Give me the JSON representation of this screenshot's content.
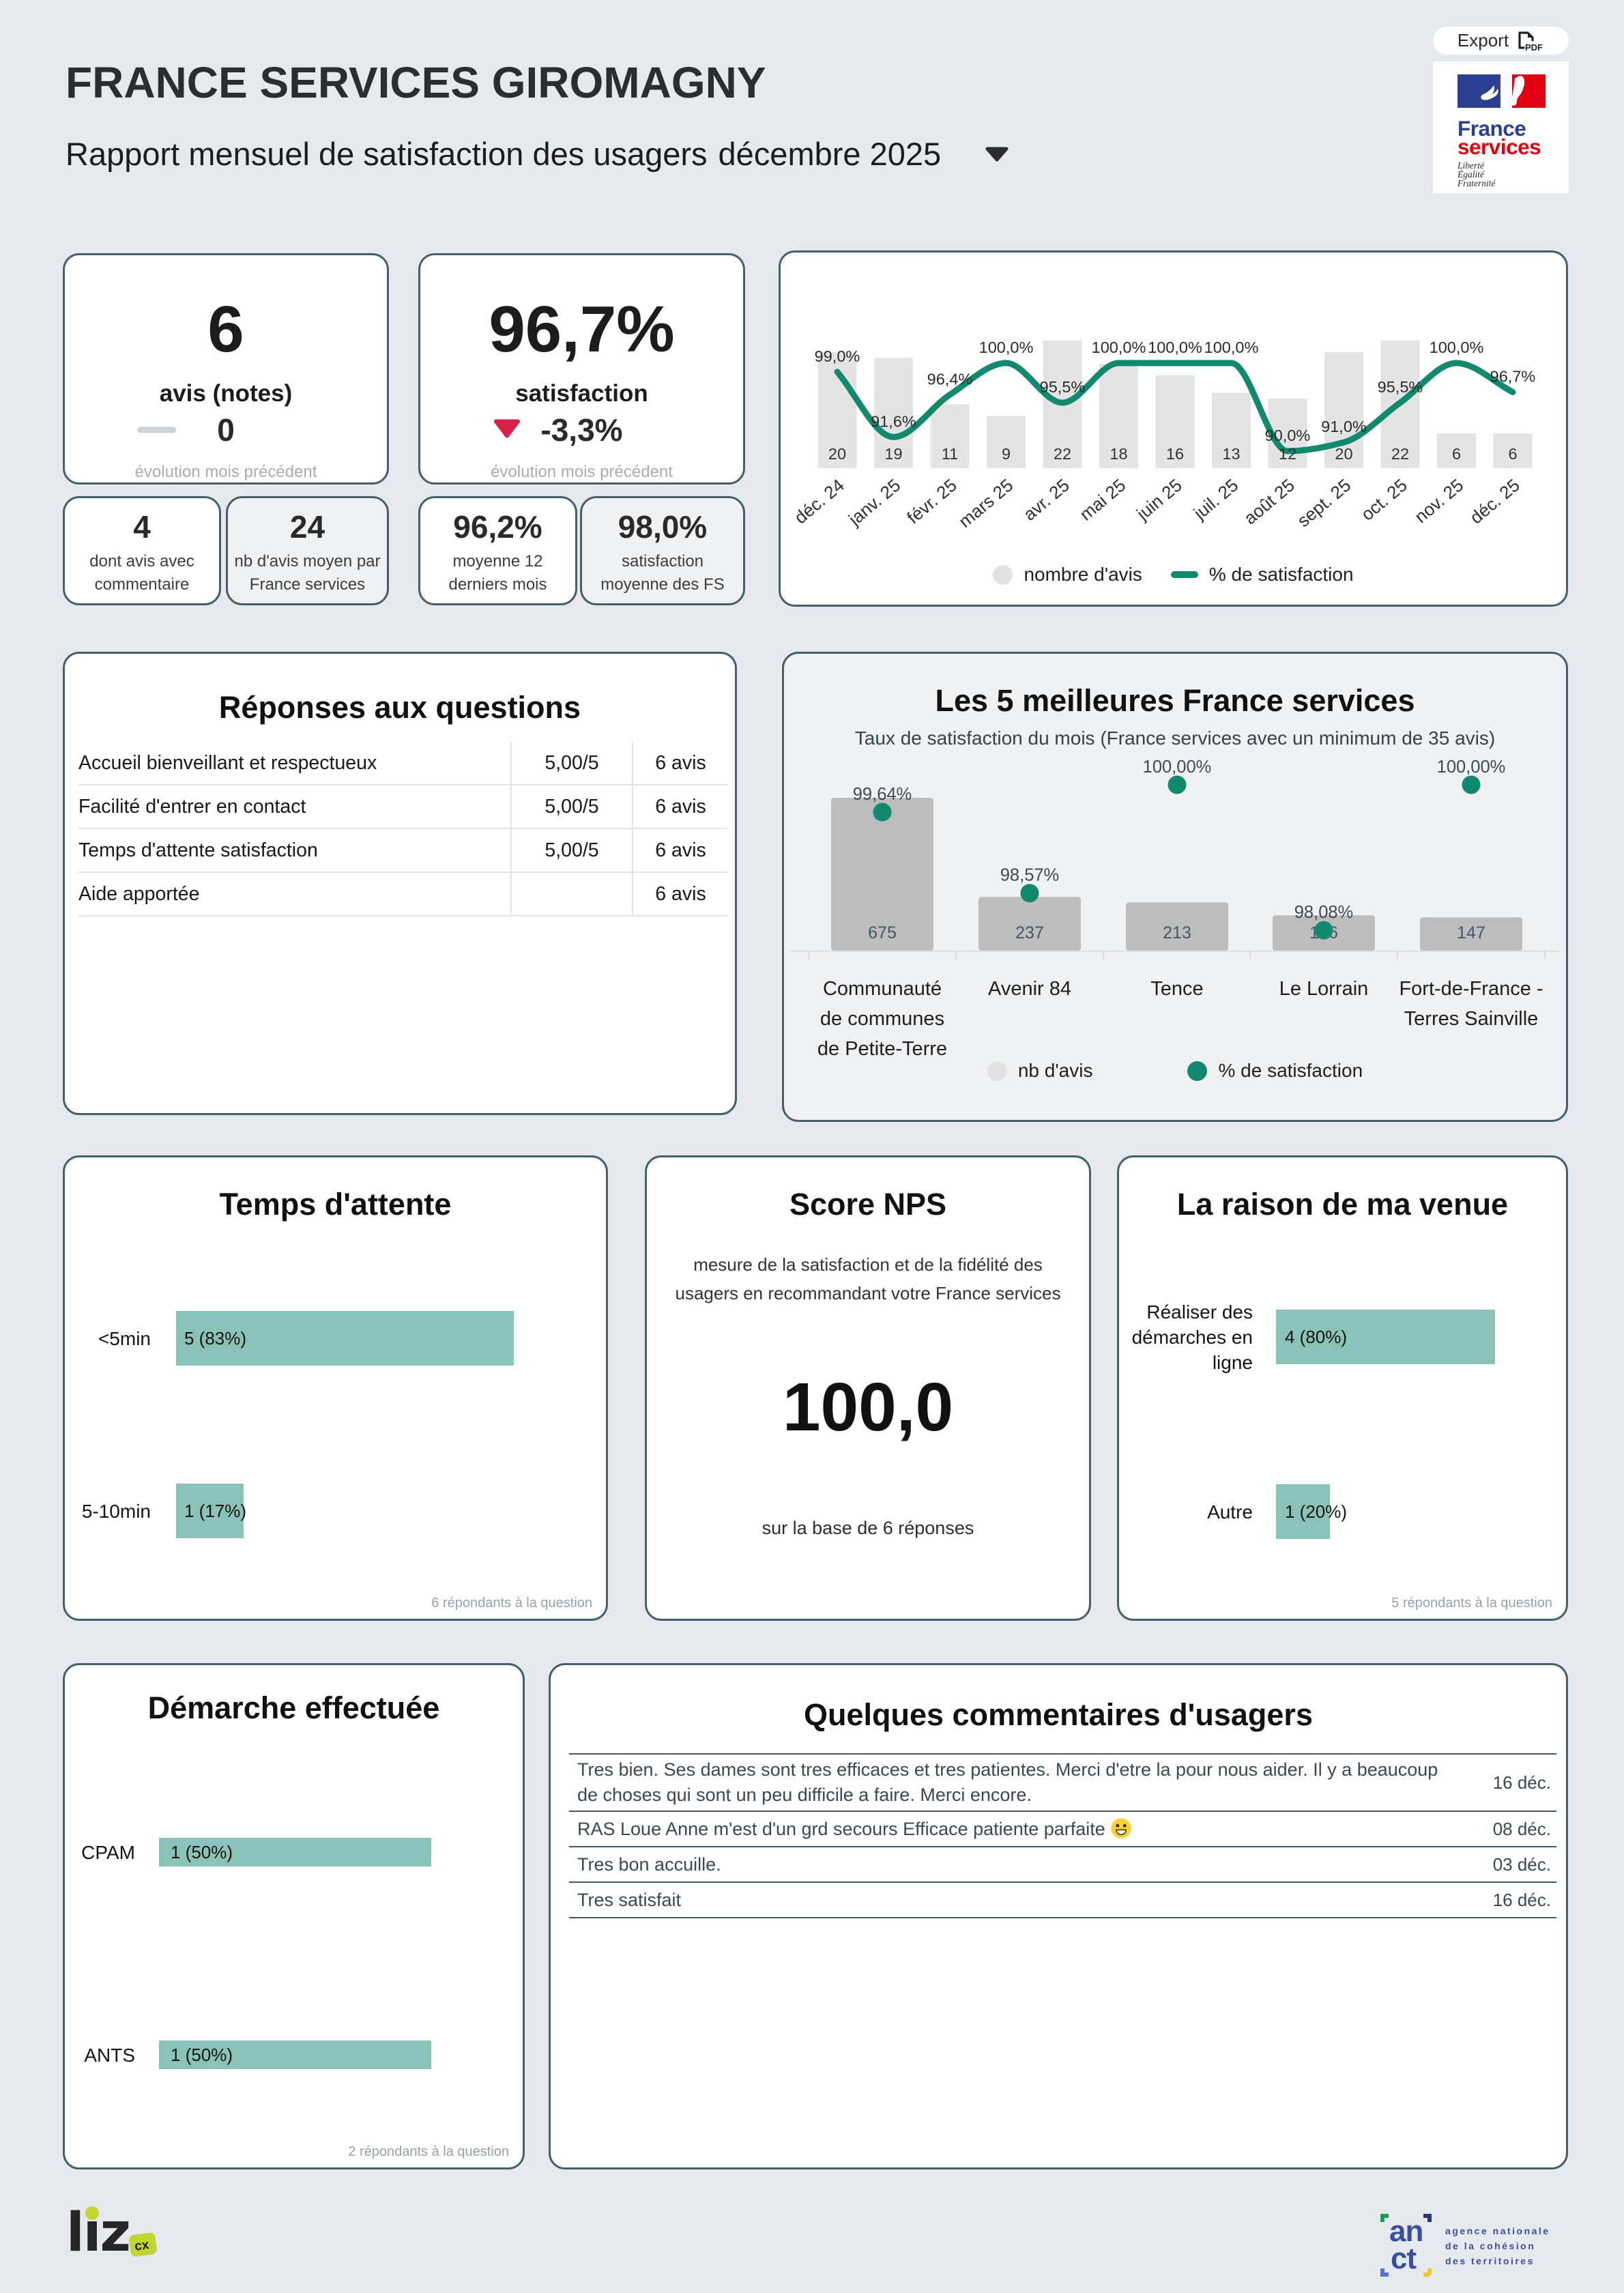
{
  "header": {
    "title": "FRANCE SERVICES GIROMAGNY",
    "subtitle": "Rapport mensuel de satisfaction des usagers",
    "period": "décembre 2025",
    "export_label": "Export",
    "logo": {
      "word1": "France",
      "word2": "services",
      "motto": [
        "Liberté",
        "Égalité",
        "Fraternité"
      ]
    }
  },
  "kpi_avis": {
    "value": "6",
    "label": "avis (notes)",
    "delta": "0",
    "delta_caption": "évolution mois précédent",
    "sub": [
      {
        "value": "4",
        "label_line1": "dont avis avec",
        "label_line2": "commentaire"
      },
      {
        "value": "24",
        "label_line1": "nb d'avis moyen par",
        "label_line2": "France services"
      }
    ]
  },
  "kpi_satisfaction": {
    "value": "96,7%",
    "label": "satisfaction",
    "delta": "-3,3%",
    "delta_caption": "évolution mois précédent",
    "sub": [
      {
        "value": "96,2%",
        "label_line1": "moyenne 12",
        "label_line2": "derniers mois"
      },
      {
        "value": "98,0%",
        "label_line1": "satisfaction",
        "label_line2": "moyenne des FS"
      }
    ]
  },
  "questions": {
    "title": "Réponses aux questions",
    "rows": [
      {
        "label": "Accueil bienveillant et respectueux",
        "score": "5,00/5",
        "avis": "6 avis"
      },
      {
        "label": "Facilité d'entrer en contact",
        "score": "5,00/5",
        "avis": "6 avis"
      },
      {
        "label": "Temps d'attente satisfaction",
        "score": "5,00/5",
        "avis": "6 avis"
      },
      {
        "label": "Aide apportée",
        "score": "",
        "avis": "6 avis"
      }
    ]
  },
  "nps": {
    "title": "Score NPS",
    "description": "mesure de la satisfaction et de la fidélité des usagers en recommandant votre France services",
    "value": "100,0",
    "base": "sur la base de 6 réponses"
  },
  "comments": {
    "title": "Quelques commentaires d'usagers",
    "rows": [
      {
        "text": "Tres bien. Ses dames sont tres efficaces et tres patientes. Merci d'etre la pour nous aider. Il y a beaucoup de choses qui sont un peu difficile a faire. Merci encore.",
        "date": "16 déc."
      },
      {
        "text": "RAS Loue Anne m'est d'un grd secours Efficace patiente parfaite 😀",
        "date": "08 déc."
      },
      {
        "text": "Tres bon accuille.",
        "date": "03 déc."
      },
      {
        "text": "Tres satisfait",
        "date": "16 déc."
      }
    ]
  },
  "footer": {
    "liz_word": "liz",
    "liz_badge": "cx",
    "anct_word1": "an",
    "anct_word2": "ct",
    "anct_lines": [
      "agence nationale",
      "de la cohésion",
      "des territoires"
    ]
  },
  "chart_data": [
    {
      "id": "trend",
      "type": "bar+line",
      "title": "",
      "categories": [
        "déc. 24",
        "janv. 25",
        "févr. 25",
        "mars 25",
        "avr. 25",
        "mai 25",
        "juin 25",
        "juil. 25",
        "août 25",
        "sept. 25",
        "oct. 25",
        "nov. 25",
        "déc. 25"
      ],
      "series": [
        {
          "name": "nombre d'avis",
          "type": "bar",
          "values": [
            20,
            19,
            11,
            9,
            22,
            18,
            16,
            13,
            12,
            20,
            22,
            6,
            6
          ]
        },
        {
          "name": "% de satisfaction",
          "type": "line",
          "values": [
            99.0,
            91.6,
            96.4,
            100.0,
            95.5,
            100.0,
            100.0,
            100.0,
            90.0,
            91.0,
            95.5,
            100.0,
            96.7
          ],
          "labels": [
            "99,0%",
            "91,6%",
            "96,4%",
            "100,0%",
            "95,5%",
            "100,0%",
            "100,0%",
            "100,0%",
            "90,0%",
            "91,0%",
            "95,5%",
            "100,0%",
            "96,7%"
          ]
        }
      ],
      "legend": [
        "nombre d'avis",
        "% de satisfaction"
      ]
    },
    {
      "id": "top5",
      "type": "bar+dot",
      "title": "Les 5 meilleures France services",
      "subtitle": "Taux de satisfaction du mois (France services avec un minimum de 35 avis)",
      "categories": [
        [
          "Communauté",
          "de communes",
          "de Petite-Terre"
        ],
        [
          "Avenir 84"
        ],
        [
          "Tence"
        ],
        [
          "Le Lorrain"
        ],
        [
          "Fort-de-France -",
          "Terres Sainville"
        ]
      ],
      "series": [
        {
          "name": "nb d'avis",
          "type": "bar",
          "values": [
            675,
            237,
            213,
            156,
            147
          ]
        },
        {
          "name": "% de satisfaction",
          "type": "dot",
          "values": [
            99.64,
            98.57,
            100.0,
            98.08,
            100.0
          ],
          "labels": [
            "99,64%",
            "98,57%",
            "100,00%",
            "98,08%",
            "100,00%"
          ]
        }
      ],
      "legend": [
        "nb d'avis",
        "% de satisfaction"
      ]
    },
    {
      "id": "temps",
      "type": "hbar",
      "title": "Temps d'attente",
      "rows": [
        {
          "label_lines": [
            "<5min"
          ],
          "value": 5,
          "pct": 83,
          "display": "5 (83%)"
        },
        {
          "label_lines": [
            "5-10min"
          ],
          "value": 1,
          "pct": 17,
          "display": "1 (17%)"
        }
      ],
      "footer": "6 répondants à la question"
    },
    {
      "id": "raison",
      "type": "hbar",
      "title": "La raison de ma venue",
      "rows": [
        {
          "label_lines": [
            "Réaliser des",
            "démarches en",
            "ligne"
          ],
          "value": 4,
          "pct": 80,
          "display": "4 (80%)"
        },
        {
          "label_lines": [
            "Autre"
          ],
          "value": 1,
          "pct": 20,
          "display": "1 (20%)"
        }
      ],
      "footer": "5 répondants à la question"
    },
    {
      "id": "demarche",
      "type": "hbar",
      "title": "Démarche effectuée",
      "rows": [
        {
          "label_lines": [
            "CPAM"
          ],
          "value": 1,
          "pct": 50,
          "display": "1 (50%)"
        },
        {
          "label_lines": [
            "ANTS"
          ],
          "value": 1,
          "pct": 50,
          "display": "1 (50%)"
        }
      ],
      "footer": "2 répondants à la question"
    }
  ]
}
